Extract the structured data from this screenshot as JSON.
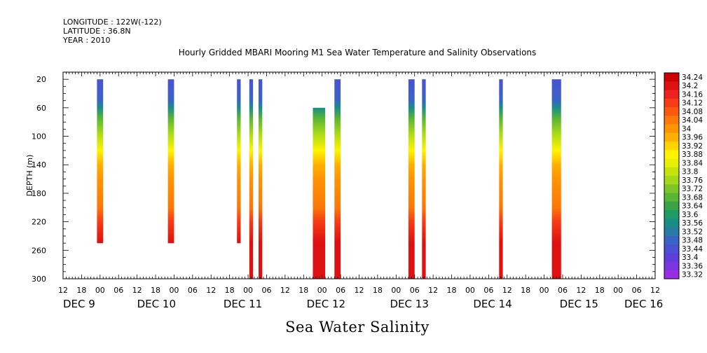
{
  "header": {
    "longitude": "LONGITUDE : 122W(-122)",
    "latitude": "LATITUDE : 36.8N",
    "year": "YEAR : 2010"
  },
  "title": "Hourly Gridded MBARI Mooring M1 Sea Water Temperature and Salinity Observations",
  "bottom_title": "Sea Water Salinity",
  "chart_data": {
    "type": "heatmap",
    "title": "Hourly Gridded MBARI Mooring M1 Sea Water Temperature and Salinity Observations",
    "xlabel": "",
    "ylabel": "DEPTH (m)",
    "variable": "Sea Water Salinity",
    "xlim_hours": [
      -12,
      180
    ],
    "x_ticks": [
      "12",
      "18",
      "00",
      "06",
      "12",
      "18",
      "00",
      "06",
      "12",
      "18",
      "00",
      "06",
      "12",
      "18",
      "00",
      "06",
      "12",
      "18",
      "00",
      "06",
      "12",
      "18",
      "00",
      "06",
      "12",
      "18",
      "00",
      "06",
      "12",
      "18",
      "00",
      "06",
      "12"
    ],
    "date_labels": [
      {
        "label": "DEC  9",
        "hour": -12
      },
      {
        "label": "DEC 10",
        "hour": 12
      },
      {
        "label": "DEC 11",
        "hour": 40
      },
      {
        "label": "DEC 12",
        "hour": 67
      },
      {
        "label": "DEC 13",
        "hour": 94
      },
      {
        "label": "DEC 14",
        "hour": 121
      },
      {
        "label": "DEC 15",
        "hour": 149
      },
      {
        "label": "DEC 16",
        "hour": 170
      }
    ],
    "ylim": [
      10,
      300
    ],
    "y_inverted": true,
    "y_ticks": [
      20,
      60,
      100,
      140,
      180,
      220,
      260,
      300
    ],
    "colorbar": {
      "min": 33.32,
      "max": 34.24,
      "step": 0.04,
      "labels": [
        "34.24",
        "34.2",
        "34.16",
        "34.12",
        "34.08",
        "34.04",
        "34",
        "33.96",
        "33.92",
        "33.88",
        "33.84",
        "33.8",
        "33.76",
        "33.72",
        "33.68",
        "33.64",
        "33.6",
        "33.56",
        "33.52",
        "33.48",
        "33.44",
        "33.4",
        "33.36",
        "33.32"
      ],
      "colors": [
        "#cc0000",
        "#dd1111",
        "#ee2222",
        "#f63b16",
        "#fa5a0e",
        "#fc7808",
        "#fd9404",
        "#ffb000",
        "#ffd400",
        "#fff300",
        "#e6f000",
        "#c6e40c",
        "#a4d81a",
        "#7ec628",
        "#5ab436",
        "#3aa348",
        "#1e9a66",
        "#1a8e86",
        "#2a7aa6",
        "#3a64c4",
        "#4a52d2",
        "#6040dc",
        "#7a34e0",
        "#9a2ce4"
      ]
    },
    "profiles": [
      {
        "hour": 0,
        "width_hours": 2.0,
        "top": 20,
        "bottom": 250
      },
      {
        "hour": 23,
        "width_hours": 2.0,
        "top": 20,
        "bottom": 250
      },
      {
        "hour": 45,
        "width_hours": 1.2,
        "top": 20,
        "bottom": 250
      },
      {
        "hour": 49,
        "width_hours": 1.2,
        "top": 20,
        "bottom": 300
      },
      {
        "hour": 52,
        "width_hours": 1.2,
        "top": 20,
        "bottom": 300
      },
      {
        "hour": 71,
        "width_hours": 4.0,
        "top": 60,
        "bottom": 300
      },
      {
        "hour": 77,
        "width_hours": 2.0,
        "top": 20,
        "bottom": 300
      },
      {
        "hour": 101,
        "width_hours": 2.0,
        "top": 20,
        "bottom": 300
      },
      {
        "hour": 105,
        "width_hours": 1.2,
        "top": 20,
        "bottom": 300
      },
      {
        "hour": 130,
        "width_hours": 1.2,
        "top": 20,
        "bottom": 300
      },
      {
        "hour": 148,
        "width_hours": 3.0,
        "top": 20,
        "bottom": 300
      }
    ],
    "salinity_by_depth": [
      {
        "depth": 20,
        "value": 33.46
      },
      {
        "depth": 50,
        "value": 33.5
      },
      {
        "depth": 60,
        "value": 33.58
      },
      {
        "depth": 75,
        "value": 33.7
      },
      {
        "depth": 95,
        "value": 33.8
      },
      {
        "depth": 120,
        "value": 33.9
      },
      {
        "depth": 140,
        "value": 33.98
      },
      {
        "depth": 160,
        "value": 34.04
      },
      {
        "depth": 200,
        "value": 34.08
      },
      {
        "depth": 220,
        "value": 34.14
      },
      {
        "depth": 250,
        "value": 34.22
      },
      {
        "depth": 300,
        "value": 34.22
      }
    ]
  }
}
